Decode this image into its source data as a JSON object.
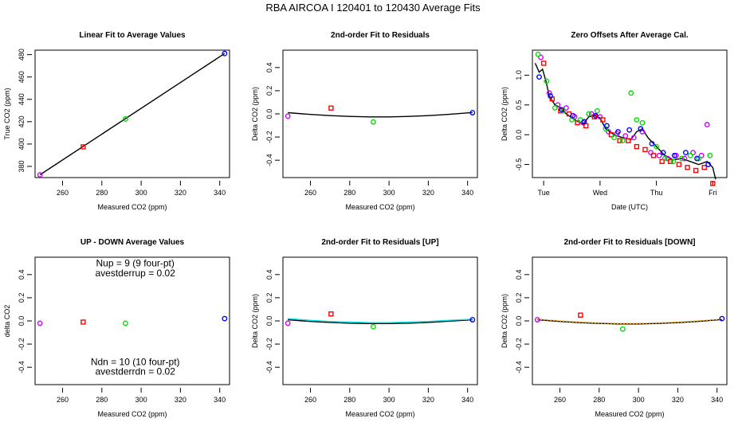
{
  "figure": {
    "title": "RBA   AIRCOA I   120401 to 120430   Average Fits"
  },
  "chart_data": [
    {
      "id": "p1",
      "type": "scatter",
      "title": "Linear Fit to Average Values",
      "xlabel": "Measured CO2 (ppm)",
      "ylabel": "True CO2 (ppm)",
      "xlim": [
        246,
        345
      ],
      "ylim": [
        370,
        484
      ],
      "xticks": [
        260,
        280,
        300,
        320,
        340
      ],
      "xticklabels": [
        "260",
        "280",
        "300",
        "320",
        "340"
      ],
      "yticks": [
        380,
        400,
        420,
        440,
        460,
        480
      ],
      "yticklabels": [
        "380",
        "400",
        "420",
        "440",
        "460",
        "480"
      ],
      "points": [
        {
          "x": 248.5,
          "y": 372.5,
          "color": "#cc00ff",
          "marker": "circle"
        },
        {
          "x": 270.5,
          "y": 397.5,
          "color": "#ff0000",
          "marker": "square"
        },
        {
          "x": 292.0,
          "y": 422.5,
          "color": "#00dd00",
          "marker": "circle"
        },
        {
          "x": 342.5,
          "y": 481.0,
          "color": "#0000ff",
          "marker": "circle"
        }
      ],
      "lines": [
        {
          "x": [
            248.5,
            342.5
          ],
          "y": [
            372.5,
            481.0
          ],
          "color": "#000000"
        }
      ]
    },
    {
      "id": "p2",
      "type": "scatter",
      "title": "2nd-order Fit to Residuals",
      "xlabel": "Measured CO2 (ppm)",
      "ylabel": "Delta CO2 (ppm)",
      "xlim": [
        246,
        345
      ],
      "ylim": [
        -0.55,
        0.55
      ],
      "xticks": [
        260,
        280,
        300,
        320,
        340
      ],
      "xticklabels": [
        "260",
        "280",
        "300",
        "320",
        "340"
      ],
      "yticks": [
        -0.4,
        -0.2,
        0.0,
        0.2,
        0.4
      ],
      "yticklabels": [
        "-0.4",
        "-0.2",
        "0.0",
        "0.2",
        "0.4"
      ],
      "points": [
        {
          "x": 248.5,
          "y": -0.02,
          "color": "#cc00ff",
          "marker": "circle"
        },
        {
          "x": 270.5,
          "y": 0.05,
          "color": "#ff0000",
          "marker": "square"
        },
        {
          "x": 292.0,
          "y": -0.07,
          "color": "#00dd00",
          "marker": "circle"
        },
        {
          "x": 342.5,
          "y": 0.01,
          "color": "#0000ff",
          "marker": "circle"
        }
      ],
      "lines": [
        {
          "x": [
            248.5,
            260,
            270,
            280,
            290,
            300,
            310,
            320,
            330,
            342.5
          ],
          "y": [
            0.01,
            -0.005,
            -0.015,
            -0.022,
            -0.026,
            -0.026,
            -0.022,
            -0.015,
            -0.005,
            0.012
          ],
          "color": "#000000"
        }
      ]
    },
    {
      "id": "p3",
      "type": "scatter",
      "title": "Zero Offsets After Average Cal.",
      "xlabel": "Date (UTC)",
      "ylabel": "Delta CO2 (ppm)",
      "xlim": [
        0,
        3.45
      ],
      "ylim": [
        -0.72,
        1.42
      ],
      "xticks": [
        0.2,
        1.2,
        2.2,
        3.2
      ],
      "xticklabels": [
        "Tue",
        "Wed",
        "Thu",
        "Fri"
      ],
      "yticks": [
        -0.5,
        0.0,
        0.5,
        1.0
      ],
      "yticklabels": [
        "-0.5",
        "0.0",
        "0.5",
        "1.0"
      ],
      "series": [
        {
          "color": "#cc00ff",
          "marker": "circle",
          "x": [
            0.15,
            0.3,
            0.45,
            0.6,
            0.75,
            0.9,
            1.05,
            1.2,
            1.35,
            1.5,
            1.65,
            1.8,
            1.95,
            2.1,
            2.25,
            2.4,
            2.55,
            2.7,
            2.85,
            3.0,
            3.1
          ],
          "y": [
            1.3,
            0.7,
            0.5,
            0.45,
            0.3,
            0.2,
            0.35,
            0.3,
            0.05,
            0.02,
            -0.02,
            -0.05,
            0.05,
            -0.3,
            -0.35,
            -0.4,
            -0.35,
            -0.4,
            -0.3,
            -0.35,
            0.17
          ]
        },
        {
          "color": "#ff0000",
          "marker": "square",
          "x": [
            0.2,
            0.35,
            0.5,
            0.65,
            0.8,
            0.95,
            1.1,
            1.25,
            1.4,
            1.55,
            1.7,
            1.85,
            2.0,
            2.15,
            2.3,
            2.45,
            2.6,
            2.75,
            2.9,
            3.05,
            3.2
          ],
          "y": [
            1.2,
            0.6,
            0.4,
            0.35,
            0.2,
            0.15,
            0.3,
            0.25,
            0.0,
            -0.1,
            -0.1,
            -0.2,
            -0.25,
            -0.35,
            -0.45,
            -0.45,
            -0.5,
            -0.55,
            -0.6,
            -0.55,
            -0.82
          ]
        },
        {
          "color": "#00dd00",
          "marker": "circle",
          "x": [
            0.1,
            0.25,
            0.4,
            0.55,
            0.7,
            0.85,
            1.0,
            1.15,
            1.3,
            1.45,
            1.6,
            1.75,
            1.85,
            1.95,
            2.2,
            2.35,
            2.5,
            2.65,
            2.8,
            2.95,
            3.15
          ],
          "y": [
            1.35,
            0.9,
            0.45,
            0.4,
            0.25,
            0.25,
            0.35,
            0.4,
            0.1,
            -0.05,
            -0.1,
            0.7,
            0.25,
            0.2,
            -0.2,
            -0.4,
            -0.45,
            -0.4,
            -0.35,
            -0.4,
            -0.35
          ]
        },
        {
          "color": "#0000ff",
          "marker": "circle",
          "x": [
            0.12,
            0.32,
            0.52,
            0.72,
            0.92,
            1.12,
            1.32,
            1.52,
            1.72,
            1.92,
            2.12,
            2.32,
            2.52,
            2.72,
            2.92,
            3.12
          ],
          "y": [
            0.97,
            0.65,
            0.42,
            0.32,
            0.22,
            0.32,
            0.15,
            0.05,
            0.08,
            0.1,
            -0.15,
            -0.3,
            -0.35,
            -0.3,
            -0.4,
            -0.5
          ]
        }
      ],
      "lines": [
        {
          "x": [
            0.05,
            0.12,
            0.18,
            0.24,
            0.3,
            0.4,
            0.5,
            0.6,
            0.75,
            0.9,
            1.0,
            1.1,
            1.2,
            1.3,
            1.45,
            1.6,
            1.75,
            1.85,
            1.95,
            2.05,
            2.2,
            2.35,
            2.5,
            2.65,
            2.8,
            2.95,
            3.1,
            3.2,
            3.25
          ],
          "y": [
            1.2,
            1.05,
            1.1,
            0.9,
            0.65,
            0.5,
            0.45,
            0.35,
            0.25,
            0.18,
            0.3,
            0.32,
            0.28,
            0.1,
            0.0,
            -0.05,
            -0.08,
            0.05,
            0.1,
            -0.05,
            -0.2,
            -0.35,
            -0.42,
            -0.4,
            -0.45,
            -0.5,
            -0.45,
            -0.55,
            -0.75
          ],
          "color": "#000000"
        }
      ]
    },
    {
      "id": "p4",
      "type": "scatter",
      "title": "UP - DOWN Average Values",
      "xlabel": "Measured CO2 (ppm)",
      "ylabel": "delta CO2",
      "xlim": [
        246,
        345
      ],
      "ylim": [
        -0.55,
        0.55
      ],
      "xticks": [
        260,
        280,
        300,
        320,
        340
      ],
      "xticklabels": [
        "260",
        "280",
        "300",
        "320",
        "340"
      ],
      "yticks": [
        -0.4,
        -0.2,
        0.0,
        0.2,
        0.4
      ],
      "yticklabels": [
        "-0.4",
        "-0.2",
        "0.0",
        "0.2",
        "0.4"
      ],
      "points": [
        {
          "x": 248.5,
          "y": -0.02,
          "color": "#cc00ff",
          "marker": "circle"
        },
        {
          "x": 270.5,
          "y": -0.01,
          "color": "#ff0000",
          "marker": "square"
        },
        {
          "x": 292.0,
          "y": -0.02,
          "color": "#00dd00",
          "marker": "circle"
        },
        {
          "x": 342.5,
          "y": 0.02,
          "color": "#0000ff",
          "marker": "circle"
        }
      ],
      "annotations": [
        {
          "text": "Nup = 9 (9 four-pt)",
          "x": 297,
          "y": 0.47
        },
        {
          "text": "avestderrup =  0.02",
          "x": 297,
          "y": 0.385
        },
        {
          "text": "Ndn = 10 (10 four-pt)",
          "x": 297,
          "y": -0.38
        },
        {
          "text": "avestderrdn =  0.02",
          "x": 297,
          "y": -0.465
        }
      ]
    },
    {
      "id": "p5",
      "type": "scatter",
      "title": "2nd-order Fit to Residuals [UP]",
      "xlabel": "Measured CO2 (ppm)",
      "ylabel": "Delta CO2 (ppm)",
      "xlim": [
        246,
        345
      ],
      "ylim": [
        -0.55,
        0.55
      ],
      "xticks": [
        260,
        280,
        300,
        320,
        340
      ],
      "xticklabels": [
        "260",
        "280",
        "300",
        "320",
        "340"
      ],
      "yticks": [
        -0.4,
        -0.2,
        0.0,
        0.2,
        0.4
      ],
      "yticklabels": [
        "-0.4",
        "-0.2",
        "0.0",
        "0.2",
        "0.4"
      ],
      "points": [
        {
          "x": 248.5,
          "y": -0.02,
          "color": "#cc00ff",
          "marker": "circle"
        },
        {
          "x": 270.5,
          "y": 0.06,
          "color": "#ff0000",
          "marker": "square"
        },
        {
          "x": 292.0,
          "y": -0.05,
          "color": "#00dd00",
          "marker": "circle"
        },
        {
          "x": 342.5,
          "y": 0.01,
          "color": "#0000ff",
          "marker": "circle"
        }
      ],
      "lines": [
        {
          "x": [
            248.5,
            260,
            270,
            280,
            290,
            300,
            310,
            320,
            330,
            342.5
          ],
          "y": [
            0.01,
            -0.005,
            -0.013,
            -0.02,
            -0.023,
            -0.023,
            -0.02,
            -0.013,
            -0.003,
            0.01
          ],
          "color": "#000000"
        },
        {
          "x": [
            248.5,
            260,
            270,
            280,
            290,
            300,
            310,
            320,
            330,
            342.5
          ],
          "y": [
            0.02,
            0.005,
            -0.005,
            -0.01,
            -0.015,
            -0.015,
            -0.01,
            -0.005,
            0.005,
            0.015
          ],
          "color": "#00e5e5"
        }
      ]
    },
    {
      "id": "p6",
      "type": "scatter",
      "title": "2nd-order Fit to Residuals [DOWN]",
      "xlabel": "Measured CO2 (ppm)",
      "ylabel": "Delta CO2 (ppm)",
      "xlim": [
        246,
        345
      ],
      "ylim": [
        -0.55,
        0.55
      ],
      "xticks": [
        260,
        280,
        300,
        320,
        340
      ],
      "xticklabels": [
        "260",
        "280",
        "300",
        "320",
        "340"
      ],
      "yticks": [
        -0.4,
        -0.2,
        0.0,
        0.2,
        0.4
      ],
      "yticklabels": [
        "-0.4",
        "-0.2",
        "0.0",
        "0.2",
        "0.4"
      ],
      "points": [
        {
          "x": 248.5,
          "y": 0.01,
          "color": "#cc00ff",
          "marker": "circle"
        },
        {
          "x": 270.5,
          "y": 0.05,
          "color": "#ff0000",
          "marker": "square"
        },
        {
          "x": 292.0,
          "y": -0.07,
          "color": "#00dd00",
          "marker": "circle"
        },
        {
          "x": 342.5,
          "y": 0.02,
          "color": "#0000ff",
          "marker": "circle"
        }
      ],
      "lines": [
        {
          "x": [
            248.5,
            260,
            270,
            280,
            290,
            300,
            310,
            320,
            330,
            342.5
          ],
          "y": [
            0.01,
            -0.005,
            -0.015,
            -0.022,
            -0.026,
            -0.026,
            -0.022,
            -0.015,
            -0.005,
            0.012
          ],
          "color": "#000000"
        },
        {
          "x": [
            248.5,
            260,
            270,
            280,
            290,
            300,
            310,
            320,
            330,
            342.5
          ],
          "y": [
            0.015,
            0.0,
            -0.01,
            -0.018,
            -0.022,
            -0.022,
            -0.018,
            -0.01,
            0.0,
            0.015
          ],
          "color": "#ffaa00",
          "dashed": true
        }
      ]
    }
  ]
}
